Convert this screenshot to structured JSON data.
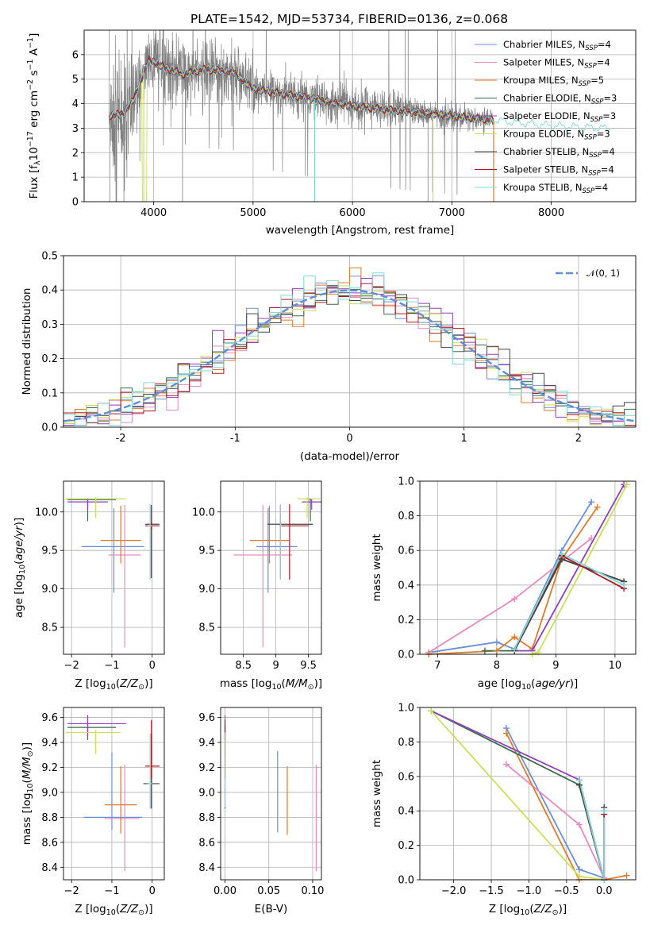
{
  "figure_title": "PLATE=1542, MJD=53734, FIBERID=0136, z=0.068",
  "colors": {
    "Chabrier MILES": "#6a8fd8",
    "Salpeter MILES": "#e88ac0",
    "Kroupa MILES": "#e07b2a",
    "Chabrier ELODIE": "#3a6b4f",
    "Salpeter ELODIE": "#8f3fbf",
    "Kroupa ELODIE": "#c8e05a",
    "Chabrier STELIB": "#444444",
    "Salpeter STELIB": "#b01820",
    "Kroupa STELIB": "#7fd8d8",
    "data": "#808080",
    "normal": "#5b8fd8"
  },
  "legend_spectrum": [
    {
      "label": "Chabrier MILES, N",
      "sub": "SSP",
      "suffix": "=4",
      "color": "#6a8fd8"
    },
    {
      "label": "Salpeter MILES, N",
      "sub": "SSP",
      "suffix": "=4",
      "color": "#e88ac0"
    },
    {
      "label": "Kroupa MILES, N",
      "sub": "SSP",
      "suffix": "=5",
      "color": "#e07b2a"
    },
    {
      "label": "Chabrier ELODIE, N",
      "sub": "SSP",
      "suffix": "=3",
      "color": "#3a6b4f"
    },
    {
      "label": "Salpeter ELODIE, N",
      "sub": "SSP",
      "suffix": "=3",
      "color": "#8f3fbf"
    },
    {
      "label": "Kroupa ELODIE, N",
      "sub": "SSP",
      "suffix": "=3",
      "color": "#c8e05a"
    },
    {
      "label": "Chabrier STELIB, N",
      "sub": "SSP",
      "suffix": "=4",
      "color": "#444444"
    },
    {
      "label": "Salpeter STELIB, N",
      "sub": "SSP",
      "suffix": "=4",
      "color": "#b01820"
    },
    {
      "label": "Kroupa STELIB, N",
      "sub": "SSP",
      "suffix": "=4",
      "color": "#7fd8d8"
    }
  ],
  "legend_hist": "𝒩(0, 1)",
  "chart_data": [
    {
      "id": "spectrum",
      "type": "line",
      "xlabel": "wavelength [Angstrom, rest frame]",
      "ylabel": "Flux [f_λ10^-17 erg cm^-2 s^-1 A^-1]",
      "xlim": [
        3300,
        8850
      ],
      "ylim": [
        0,
        7
      ],
      "xticks": [
        4000,
        5000,
        6000,
        7000,
        8000
      ],
      "yticks": [
        0,
        1,
        2,
        3,
        4,
        5,
        6
      ],
      "continuum": [
        [
          3550,
          3.5
        ],
        [
          3700,
          3.6
        ],
        [
          3800,
          4.2
        ],
        [
          3950,
          5.8
        ],
        [
          4100,
          5.5
        ],
        [
          4300,
          5.2
        ],
        [
          4500,
          5.4
        ],
        [
          4800,
          5.3
        ],
        [
          5000,
          4.6
        ],
        [
          5300,
          4.4
        ],
        [
          5600,
          4.2
        ],
        [
          6000,
          3.9
        ],
        [
          6500,
          3.7
        ],
        [
          7000,
          3.5
        ],
        [
          7500,
          3.3
        ],
        [
          8000,
          3.1
        ],
        [
          8500,
          3.0
        ]
      ],
      "model_dips": [
        3900,
        5620,
        6810,
        7420
      ],
      "grid": true,
      "legend_position": "upper right"
    },
    {
      "id": "residuals",
      "type": "histogram",
      "xlabel": "(data-model)/error",
      "ylabel": "Normed distribution",
      "xlim": [
        -2.5,
        2.5
      ],
      "ylim": [
        0,
        0.5
      ],
      "xticks": [
        -2,
        -1,
        0,
        1,
        2
      ],
      "yticks": [
        0.0,
        0.1,
        0.2,
        0.3,
        0.4,
        0.5
      ],
      "bin_width": 0.1,
      "normal_curve": {
        "mu": 0,
        "sigma": 1
      },
      "grid": true,
      "legend_position": "upper right"
    },
    {
      "id": "age_vs_Z",
      "type": "errorbar",
      "xlabel": "Z [log10(Z/Z⊙)]",
      "ylabel": "age  [log10(age/yr)]",
      "xlim": [
        -2.2,
        0.3
      ],
      "ylim": [
        8.15,
        10.4
      ],
      "xticks": [
        -2,
        -1,
        0
      ],
      "xticklabels": [
        "−2",
        "−1",
        "0"
      ],
      "yticks": [
        8.5,
        9.0,
        9.5,
        10.0
      ],
      "points": [
        {
          "series": "Chabrier MILES",
          "x": -0.95,
          "y": 9.55,
          "xerr": [
            0.8,
            0.75
          ],
          "yerr": [
            0.6,
            0.5
          ]
        },
        {
          "series": "Salpeter MILES",
          "x": -0.68,
          "y": 9.44,
          "xerr": [
            0.4,
            0.4
          ],
          "yerr": [
            1.2,
            0.65
          ]
        },
        {
          "series": "Kroupa MILES",
          "x": -0.78,
          "y": 9.63,
          "xerr": [
            0.5,
            0.5
          ],
          "yerr": [
            0.3,
            0.45
          ]
        },
        {
          "series": "Chabrier ELODIE",
          "x": -1.6,
          "y": 10.16,
          "xerr": [
            0.5,
            0.7
          ],
          "yerr": [
            0.28,
            0.02
          ]
        },
        {
          "series": "Salpeter ELODIE",
          "x": -1.6,
          "y": 10.13,
          "xerr": [
            0.5,
            0.5
          ],
          "yerr": [
            0.1,
            0.04
          ]
        },
        {
          "series": "Kroupa ELODIE",
          "x": -1.4,
          "y": 10.17,
          "xerr": [
            0.75,
            0.75
          ],
          "yerr": [
            0.25,
            0.02
          ]
        },
        {
          "series": "Chabrier STELIB",
          "x": -0.02,
          "y": 9.84,
          "xerr": [
            0.15,
            0.2
          ],
          "yerr": [
            0.7,
            0.25
          ]
        },
        {
          "series": "Salpeter STELIB",
          "x": -0.02,
          "y": 9.82,
          "xerr": [
            0.15,
            0.2
          ],
          "yerr": [
            0.05,
            0.05
          ]
        },
        {
          "series": "Kroupa STELIB",
          "x": -0.05,
          "y": 9.82,
          "xerr": [
            0.05,
            0.05
          ],
          "yerr": [
            0.7,
            0.28
          ]
        }
      ]
    },
    {
      "id": "age_vs_mass",
      "type": "errorbar",
      "xlabel": "mass [log10(M/M⊙)]",
      "ylabel": "",
      "xlim": [
        8.15,
        9.7
      ],
      "ylim": [
        8.15,
        10.4
      ],
      "xticks": [
        8.5,
        9.0,
        9.5
      ],
      "yticks": [
        8.5,
        9.0,
        9.5,
        10.0
      ],
      "points": [
        {
          "series": "Chabrier MILES",
          "x": 8.88,
          "y": 9.55,
          "xerr": [
            0.18,
            0.45
          ],
          "yerr": [
            0.6,
            0.5
          ]
        },
        {
          "series": "Salpeter MILES",
          "x": 8.8,
          "y": 9.44,
          "xerr": [
            0.45,
            0.45
          ],
          "yerr": [
            1.2,
            0.65
          ]
        },
        {
          "series": "Kroupa MILES",
          "x": 8.9,
          "y": 9.63,
          "xerr": [
            0.3,
            0.3
          ],
          "yerr": [
            0.3,
            0.45
          ]
        },
        {
          "series": "Chabrier ELODIE",
          "x": 9.53,
          "y": 10.16,
          "xerr": [
            0.02,
            0.02
          ],
          "yerr": [
            0.28,
            0.02
          ]
        },
        {
          "series": "Salpeter ELODIE",
          "x": 9.55,
          "y": 10.13,
          "xerr": [
            0.15,
            0.15
          ],
          "yerr": [
            0.1,
            0.04
          ]
        },
        {
          "series": "Kroupa ELODIE",
          "x": 9.48,
          "y": 10.17,
          "xerr": [
            0.15,
            0.2
          ],
          "yerr": [
            0.25,
            0.02
          ]
        },
        {
          "series": "Chabrier STELIB",
          "x": 9.07,
          "y": 9.84,
          "xerr": [
            0.2,
            0.5
          ],
          "yerr": [
            0.7,
            0.25
          ]
        },
        {
          "series": "Salpeter STELIB",
          "x": 9.21,
          "y": 9.82,
          "xerr": [
            0.15,
            0.3
          ],
          "yerr": [
            0.7,
            0.28
          ]
        },
        {
          "series": "Kroupa STELIB",
          "x": 9.07,
          "y": 9.82,
          "xerr": [
            0.02,
            0.02
          ],
          "yerr": [
            0.7,
            0.28
          ]
        }
      ]
    },
    {
      "id": "mass_weight_vs_age",
      "type": "line",
      "xlabel": "age  [log10(age/yr)]",
      "ylabel": "mass weight",
      "xlim": [
        6.7,
        10.35
      ],
      "ylim": [
        0,
        1
      ],
      "xticks": [
        7,
        8,
        9,
        10
      ],
      "yticks": [
        0.0,
        0.2,
        0.4,
        0.6,
        0.8,
        1.0
      ],
      "series": [
        {
          "name": "Chabrier MILES",
          "x": [
            6.85,
            8.0,
            8.3,
            9.1,
            9.6
          ],
          "y": [
            0.01,
            0.07,
            0.03,
            0.6,
            0.88
          ]
        },
        {
          "name": "Salpeter MILES",
          "x": [
            6.85,
            8.3,
            9.6
          ],
          "y": [
            0.01,
            0.32,
            0.67
          ]
        },
        {
          "name": "Kroupa MILES",
          "x": [
            6.85,
            8.0,
            8.3,
            8.6,
            9.1,
            9.7
          ],
          "y": [
            0.0,
            0.02,
            0.1,
            0.03,
            0.55,
            0.85
          ]
        },
        {
          "name": "Chabrier ELODIE",
          "x": [
            7.8,
            8.3,
            9.1,
            10.15
          ],
          "y": [
            0.02,
            0.02,
            0.55,
            0.42
          ]
        },
        {
          "name": "Salpeter ELODIE",
          "x": [
            8.3,
            8.6,
            10.15
          ],
          "y": [
            0.02,
            0.02,
            0.98
          ]
        },
        {
          "name": "Kroupa ELODIE",
          "x": [
            8.6,
            8.7,
            10.2
          ],
          "y": [
            0.0,
            0.01,
            0.98
          ]
        },
        {
          "name": "Chabrier STELIB",
          "x": [
            8.3,
            9.1,
            10.15
          ],
          "y": [
            0.02,
            0.55,
            0.42
          ]
        },
        {
          "name": "Salpeter STELIB",
          "x": [
            8.3,
            9.1,
            10.15
          ],
          "y": [
            0.03,
            0.57,
            0.38
          ]
        },
        {
          "name": "Kroupa STELIB",
          "x": [
            8.3,
            9.1,
            10.15
          ],
          "y": [
            0.03,
            0.58,
            0.4
          ]
        }
      ]
    },
    {
      "id": "mass_vs_Z",
      "type": "errorbar",
      "xlabel": "Z [log10(Z/Z⊙)]",
      "ylabel": "mass [log10(M/M⊙)]",
      "xlim": [
        -2.2,
        0.3
      ],
      "ylim": [
        8.3,
        9.68
      ],
      "xticks": [
        -2,
        -1,
        0
      ],
      "xticklabels": [
        "−2",
        "−1",
        "0"
      ],
      "yticks": [
        8.4,
        8.6,
        8.8,
        9.0,
        9.2,
        9.4,
        9.6
      ],
      "points": [
        {
          "series": "Chabrier MILES",
          "x": -1.0,
          "y": 8.8,
          "xerr": [
            0.7,
            0.75
          ],
          "yerr": [
            0.1,
            0.52
          ]
        },
        {
          "series": "Salpeter MILES",
          "x": -0.68,
          "y": 8.79,
          "xerr": [
            0.5,
            0.35
          ],
          "yerr": [
            0.42,
            0.43
          ]
        },
        {
          "series": "Kroupa MILES",
          "x": -0.78,
          "y": 8.9,
          "xerr": [
            0.4,
            0.4
          ],
          "yerr": [
            0.23,
            0.31
          ]
        },
        {
          "series": "Chabrier ELODIE",
          "x": -1.6,
          "y": 9.52,
          "xerr": [
            0.5,
            0.7
          ],
          "yerr": [
            0.1,
            0.02
          ]
        },
        {
          "series": "Salpeter ELODIE",
          "x": -1.6,
          "y": 9.55,
          "xerr": [
            0.5,
            0.95
          ],
          "yerr": [
            0.1,
            0.07
          ]
        },
        {
          "series": "Kroupa ELODIE",
          "x": -1.4,
          "y": 9.48,
          "xerr": [
            0.75,
            0.6
          ],
          "yerr": [
            0.17,
            0.02
          ]
        },
        {
          "series": "Chabrier STELIB",
          "x": -0.02,
          "y": 9.07,
          "xerr": [
            0.2,
            0.2
          ],
          "yerr": [
            0.2,
            0.4
          ]
        },
        {
          "series": "Salpeter STELIB",
          "x": -0.02,
          "y": 9.21,
          "xerr": [
            0.15,
            0.2
          ],
          "yerr": [
            0.1,
            0.37
          ]
        },
        {
          "series": "Kroupa STELIB",
          "x": -0.05,
          "y": 9.07,
          "xerr": [
            0.05,
            0.05
          ],
          "yerr": [
            0.2,
            0.4
          ]
        }
      ]
    },
    {
      "id": "mass_vs_ebv",
      "type": "errorbar",
      "xlabel": "E(B-V)",
      "ylabel": "",
      "xlim": [
        -0.005,
        0.11
      ],
      "ylim": [
        8.3,
        9.68
      ],
      "xticks": [
        0.0,
        0.05,
        0.1
      ],
      "xticklabels": [
        "0.00",
        "0.05",
        "0.10"
      ],
      "yticks": [
        8.4,
        8.6,
        8.8,
        9.0,
        9.2,
        9.4,
        9.6
      ],
      "points": [
        {
          "series": "Chabrier MILES",
          "x": 0.06,
          "y": 9.0,
          "xerr": [
            0,
            0
          ],
          "yerr": [
            0.32,
            0.33
          ]
        },
        {
          "series": "Salpeter MILES",
          "x": 0.104,
          "y": 8.79,
          "xerr": [
            0,
            0
          ],
          "yerr": [
            0.42,
            0.43
          ]
        },
        {
          "series": "Kroupa MILES",
          "x": 0.071,
          "y": 8.93,
          "xerr": [
            0,
            0
          ],
          "yerr": [
            0.27,
            0.28
          ]
        },
        {
          "series": "Chabrier ELODIE",
          "x": 0.0,
          "y": 9.52,
          "xerr": [
            0,
            0
          ],
          "yerr": [
            0.1,
            0.02
          ]
        },
        {
          "series": "Salpeter ELODIE",
          "x": 0.0,
          "y": 9.55,
          "xerr": [
            0,
            0
          ],
          "yerr": [
            0.1,
            0.07
          ]
        },
        {
          "series": "Kroupa ELODIE",
          "x": 0.0,
          "y": 9.48,
          "xerr": [
            0,
            0
          ],
          "yerr": [
            0.17,
            0.02
          ]
        },
        {
          "series": "Chabrier STELIB",
          "x": 0.0,
          "y": 9.07,
          "xerr": [
            0,
            0
          ],
          "yerr": [
            0.2,
            0.4
          ]
        },
        {
          "series": "Salpeter STELIB",
          "x": 0.0,
          "y": 9.21,
          "xerr": [
            0,
            0
          ],
          "yerr": [
            0.1,
            0.37
          ]
        },
        {
          "series": "Kroupa STELIB",
          "x": 0.0,
          "y": 9.18,
          "xerr": [
            0,
            0
          ],
          "yerr": [
            0.3,
            0.3
          ]
        }
      ]
    },
    {
      "id": "mass_weight_vs_Z",
      "type": "line",
      "xlabel": "Z [log10(Z/Z⊙)]",
      "ylabel": "mass weight",
      "xlim": [
        -2.45,
        0.42
      ],
      "ylim": [
        0,
        1
      ],
      "xticks": [
        -2.0,
        -1.5,
        -1.0,
        -0.5,
        0.0
      ],
      "xticklabels": [
        "−2.0",
        "−1.5",
        "−1.0",
        "−0.5",
        "0.0"
      ],
      "yticks": [
        0.0,
        0.2,
        0.4,
        0.6,
        0.8,
        1.0
      ],
      "series": [
        {
          "name": "Chabrier MILES",
          "x": [
            -1.3,
            -0.33,
            0.0
          ],
          "y": [
            0.88,
            0.06,
            0.01
          ]
        },
        {
          "name": "Salpeter MILES",
          "x": [
            -1.3,
            -0.33,
            0.0
          ],
          "y": [
            0.67,
            0.32,
            0.01
          ]
        },
        {
          "name": "Kroupa MILES",
          "x": [
            -1.3,
            -0.33,
            0.0,
            0.3
          ],
          "y": [
            0.85,
            0.0,
            0.0,
            0.025
          ]
        },
        {
          "name": "Chabrier ELODIE",
          "x": [
            -2.3,
            -0.33,
            0.0
          ],
          "y": [
            0.98,
            0.55,
            0.0
          ]
        },
        {
          "name": "Salpeter ELODIE",
          "x": [
            -2.3,
            -0.33,
            0.0
          ],
          "y": [
            0.98,
            0.58,
            0.0
          ]
        },
        {
          "name": "Kroupa ELODIE",
          "x": [
            -2.3,
            -0.33,
            0.0
          ],
          "y": [
            0.98,
            0.02,
            0.0
          ]
        },
        {
          "name": "Chabrier STELIB",
          "x": [
            -0.33,
            0.0,
            0.0
          ],
          "y": [
            0.55,
            0.0,
            0.42
          ]
        },
        {
          "name": "Salpeter STELIB",
          "x": [
            -0.33,
            0.0,
            0.0
          ],
          "y": [
            0.58,
            0.0,
            0.38
          ]
        },
        {
          "name": "Kroupa STELIB",
          "x": [
            -0.33,
            0.0,
            0.0
          ],
          "y": [
            0.58,
            0.0,
            0.4
          ]
        }
      ]
    }
  ]
}
